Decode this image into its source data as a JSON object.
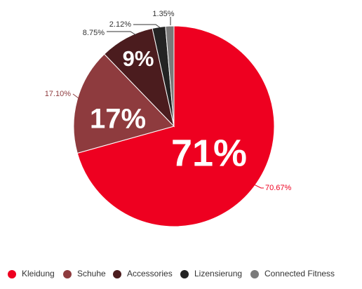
{
  "chart_data": {
    "type": "pie",
    "categories": [
      "Kleidung",
      "Schuhe",
      "Accessories",
      "Lizensierung",
      "Connected Fitness"
    ],
    "values": [
      70.67,
      17.1,
      8.75,
      2.12,
      1.35
    ],
    "value_labels": [
      "70.67%",
      "17.10%",
      "8.75%",
      "2.12%",
      "1.35%"
    ],
    "inner_labels": [
      "71%",
      "17%",
      "9%",
      null,
      null
    ],
    "colors": [
      "#ee0020",
      "#8e3b3e",
      "#4b1c1e",
      "#232323",
      "#7a7a7a"
    ],
    "legend": "bottom"
  }
}
